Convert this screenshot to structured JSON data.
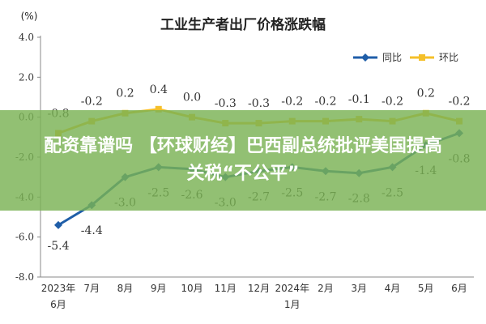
{
  "chart_data": {
    "type": "line",
    "title": "工业生产者出厂价格涨跌幅",
    "ylabel": "(%)",
    "ylim": [
      -8.0,
      4.0
    ],
    "yticks": [
      "4.0",
      "2.0",
      "0.0",
      "-2.0",
      "-4.0",
      "-6.0",
      "-8.0"
    ],
    "ytick_values": [
      4,
      2,
      0,
      -2,
      -4,
      -6,
      -8
    ],
    "categories": [
      [
        "2023年",
        "6月"
      ],
      [
        "7月"
      ],
      [
        "8月"
      ],
      [
        "9月"
      ],
      [
        "10月"
      ],
      [
        "11月"
      ],
      [
        "12月"
      ],
      [
        "2024年",
        "1月"
      ],
      [
        "2月"
      ],
      [
        "3月"
      ],
      [
        "4月"
      ],
      [
        "5月"
      ],
      [
        "6月"
      ]
    ],
    "legend_position": "top-right",
    "grid": false,
    "series": [
      {
        "name": "同比",
        "color": "#1f5ea8",
        "values": [
          -5.4,
          -4.4,
          -3.0,
          -2.5,
          -2.6,
          -3.0,
          -2.7,
          -2.5,
          -2.7,
          -2.8,
          -2.5,
          -1.4,
          -0.8
        ],
        "labels": [
          "-5.4",
          "-4.4",
          "-3.0",
          "-2.5",
          "-2.6",
          "-3.0",
          "-2.7",
          "-2.5",
          "-2.7",
          "-2.8",
          "-2.5",
          "-1.4",
          "-0.8"
        ]
      },
      {
        "name": "环比",
        "color": "#f5c02a",
        "values": [
          -0.8,
          -0.2,
          0.2,
          0.4,
          0.0,
          -0.3,
          -0.3,
          -0.2,
          -0.2,
          -0.1,
          -0.2,
          0.2,
          -0.2
        ],
        "labels": [
          "-0.8",
          "-0.2",
          "0.2",
          "0.4",
          "0.0",
          "-0.3",
          "-0.3",
          "-0.2",
          "-0.2",
          "-0.1",
          "-0.2",
          "0.2",
          "-0.2"
        ]
      }
    ]
  },
  "banner": {
    "line1": "配资靠谱吗 【环球财经】巴西副总统批评美国提高",
    "line2": "关税“不公平”"
  }
}
